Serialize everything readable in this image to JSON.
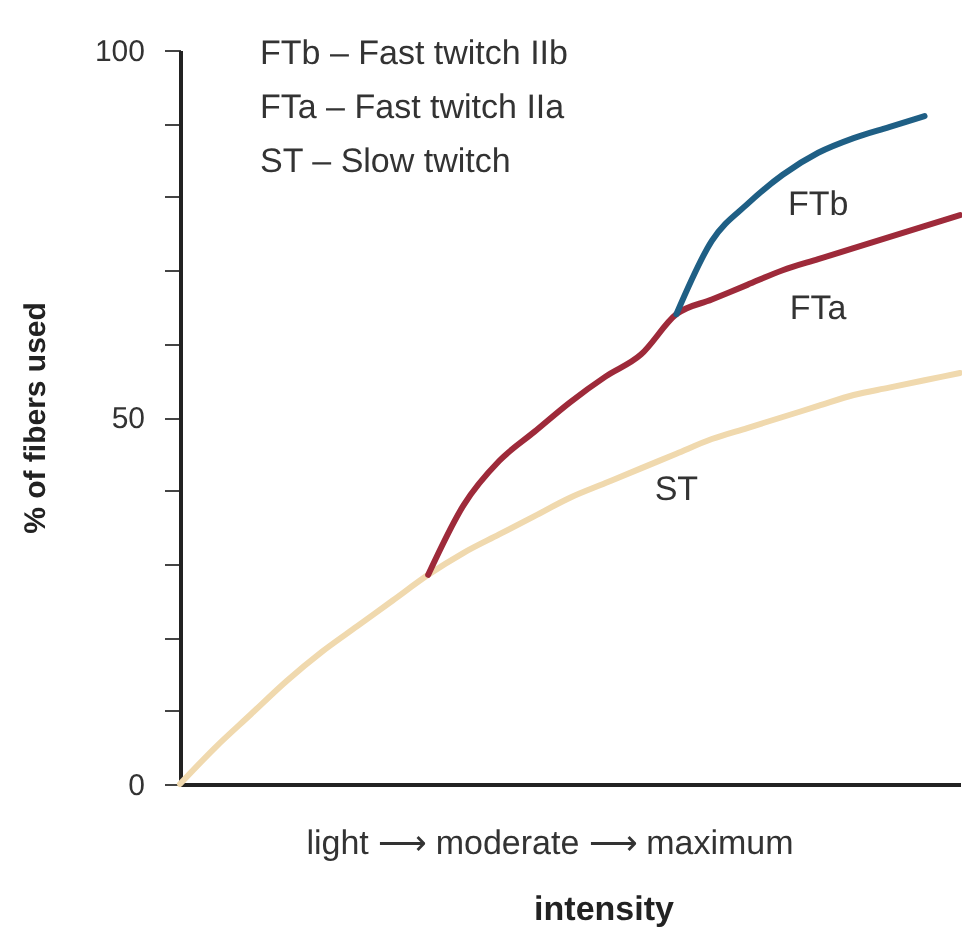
{
  "chart_data": {
    "type": "line",
    "xlabel": "intensity",
    "ylabel": "% of fibers used",
    "categories": [
      null,
      null,
      null,
      null,
      null,
      null,
      null,
      null,
      null,
      null,
      null,
      null,
      null,
      null,
      null,
      null,
      null,
      null,
      null,
      null,
      null,
      null,
      null
    ],
    "series": [
      {
        "name": "ST",
        "color": "#f0d9ae",
        "values": [
          0,
          5,
          9.5,
          14,
          18,
          21.5,
          25,
          28.5,
          31.5,
          34,
          36.5,
          39,
          41,
          43,
          45,
          47,
          48.5,
          50,
          51.5,
          53,
          54,
          55,
          56
        ]
      },
      {
        "name": "FTa",
        "color": "#9e2a3a",
        "values": [
          null,
          null,
          null,
          null,
          null,
          null,
          null,
          28.5,
          38,
          44,
          48,
          52,
          55.5,
          58.5,
          64,
          66,
          68,
          70,
          71.5,
          73,
          74.5,
          76,
          77.5
        ]
      },
      {
        "name": "FTb",
        "color": "#1f5f85",
        "values": [
          null,
          null,
          null,
          null,
          null,
          null,
          null,
          null,
          null,
          null,
          null,
          null,
          null,
          null,
          64,
          74,
          79,
          83,
          86,
          88,
          89.5,
          91,
          null
        ]
      }
    ],
    "ylim": [
      0,
      100
    ],
    "yticks": [
      0,
      {
        "value": 10,
        "label": null
      },
      {
        "value": 20,
        "label": null
      },
      {
        "value": 30,
        "label": null
      },
      {
        "value": 40,
        "label": null
      },
      50,
      {
        "value": 60,
        "label": null
      },
      {
        "value": 70,
        "label": null
      },
      {
        "value": 80,
        "label": null
      },
      {
        "value": 90,
        "label": null
      },
      100
    ],
    "tick_labels": "y",
    "grid": false,
    "annotations": [
      "FTb – Fast twitch IIb",
      "FTa – Fast twitch IIa",
      "ST – Slow twitch",
      "light ⟶ moderate ⟶ maximum"
    ]
  }
}
